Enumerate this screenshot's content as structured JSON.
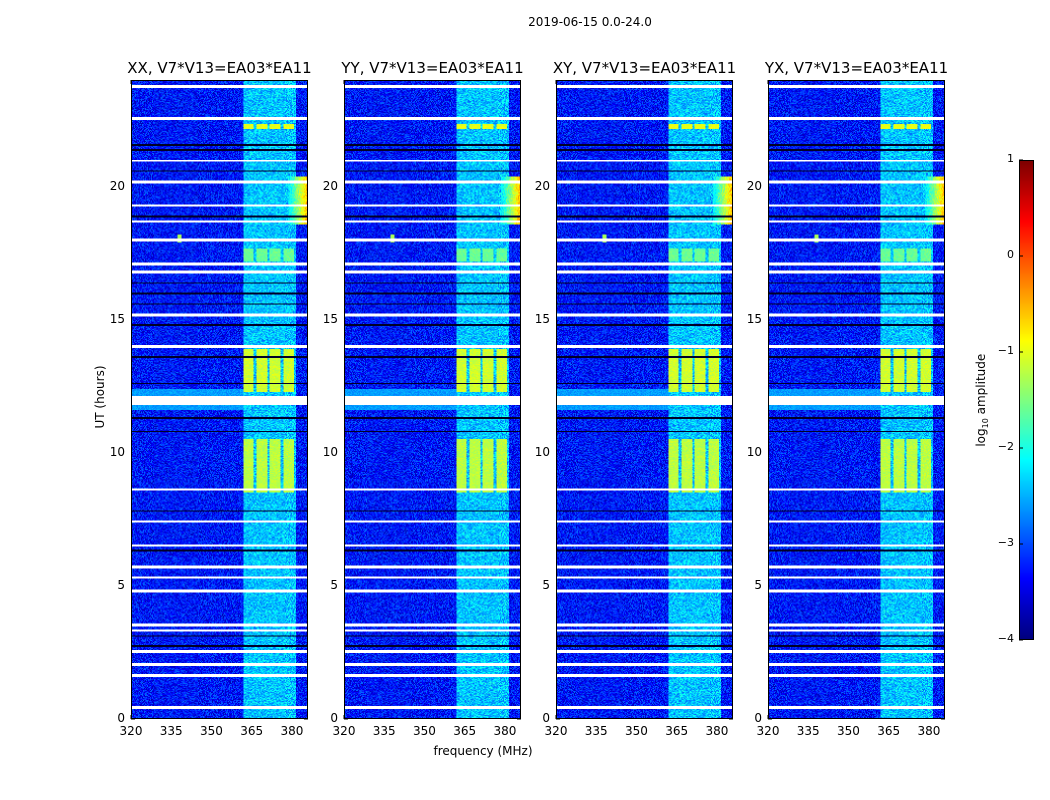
{
  "chart_data": {
    "type": "heatmap",
    "title": "2019-06-15 0.0-24.0",
    "xlabel": "frequency (MHz)",
    "ylabel": "UT (hours)",
    "xlim": [
      320,
      386
    ],
    "ylim": [
      0,
      24
    ],
    "xticks": [
      320,
      335,
      350,
      365,
      380
    ],
    "yticks": [
      0,
      5,
      10,
      15,
      20
    ],
    "panels": [
      {
        "title": "XX, V7*V13=EA03*EA11",
        "rfi_edge": true,
        "line_338": true
      },
      {
        "title": "YY, V7*V13=EA03*EA11",
        "rfi_edge": true,
        "line_338": true
      },
      {
        "title": "XY, V7*V13=EA03*EA11",
        "rfi_edge": true,
        "line_338": true
      },
      {
        "title": "YX, V7*V13=EA03*EA11",
        "rfi_edge": true,
        "line_338": true
      }
    ],
    "colorbar": {
      "label": "log10 amplitude",
      "label_main": "log",
      "label_sub": "10",
      "label_rest": " amplitude",
      "range": [
        -4,
        1
      ],
      "ticks": [
        "1",
        "0",
        "−1",
        "−2",
        "−3",
        "−4"
      ],
      "tick_values": [
        1,
        0,
        -1,
        -2,
        -3,
        -4
      ],
      "colormap": "jet"
    },
    "background_level": -3.3,
    "band_level": -2.4,
    "band_mhz": [
      362,
      382
    ],
    "subbands_mhz": [
      [
        362,
        366
      ],
      [
        367,
        371
      ],
      [
        372,
        376
      ],
      [
        377,
        381
      ]
    ],
    "bright_intervals_hours": [
      {
        "from": 8.5,
        "to": 10.5,
        "level": -1.2
      },
      {
        "from": 12.3,
        "to": 13.9,
        "level": -1.1
      },
      {
        "from": 17.2,
        "to": 17.7,
        "level": -1.6
      },
      {
        "from": 22.2,
        "to": 22.4,
        "level": -1.0
      }
    ],
    "flagged_hours": [
      23.8,
      22.6,
      21.0,
      20.2,
      19.3,
      18.7,
      18.0,
      17.1,
      16.8,
      15.2,
      14.0,
      12.0,
      11.85,
      8.6,
      7.4,
      6.5,
      5.7,
      5.3,
      4.8,
      3.5,
      3.3,
      2.5,
      2.0,
      1.6,
      0.4
    ],
    "dark_rows_hours": [
      21.6,
      21.4,
      20.6,
      18.9,
      16.4,
      16.0,
      15.6,
      14.8,
      13.6,
      12.6,
      11.3,
      10.8,
      7.8,
      6.3,
      3.1,
      2.7
    ]
  }
}
